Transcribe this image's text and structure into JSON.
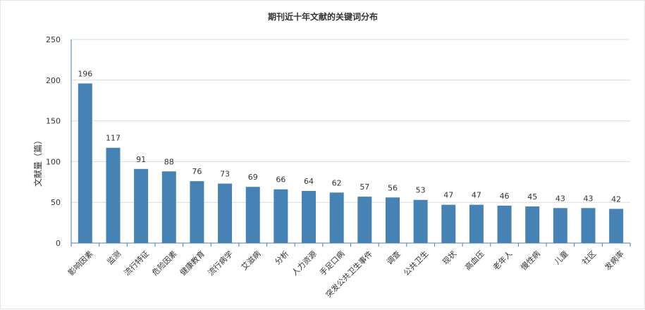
{
  "chart_data": {
    "type": "bar",
    "title": "期刊近十年文献的关键词分布",
    "ylabel": "文献量（篇）",
    "xlabel": "",
    "ylim": [
      0,
      250
    ],
    "yticks": [
      0,
      50,
      100,
      150,
      200,
      250
    ],
    "grid": true,
    "legend": "none",
    "categories": [
      "影响因素",
      "监测",
      "流行特征",
      "危险因素",
      "健康教育",
      "流行病学",
      "艾滋病",
      "分析",
      "人力资源",
      "手足口病",
      "突发公共卫生事件",
      "调查",
      "公共卫生",
      "现状",
      "高血压",
      "老年人",
      "慢性病",
      "儿童",
      "社区",
      "发病率"
    ],
    "values": [
      196,
      117,
      91,
      88,
      76,
      73,
      69,
      66,
      64,
      62,
      57,
      56,
      53,
      47,
      47,
      46,
      45,
      43,
      43,
      42
    ],
    "colors": {
      "bar": "#4682b4",
      "axis": "#4682b4",
      "grid": "#dcdcdc",
      "text": "#333333"
    }
  }
}
